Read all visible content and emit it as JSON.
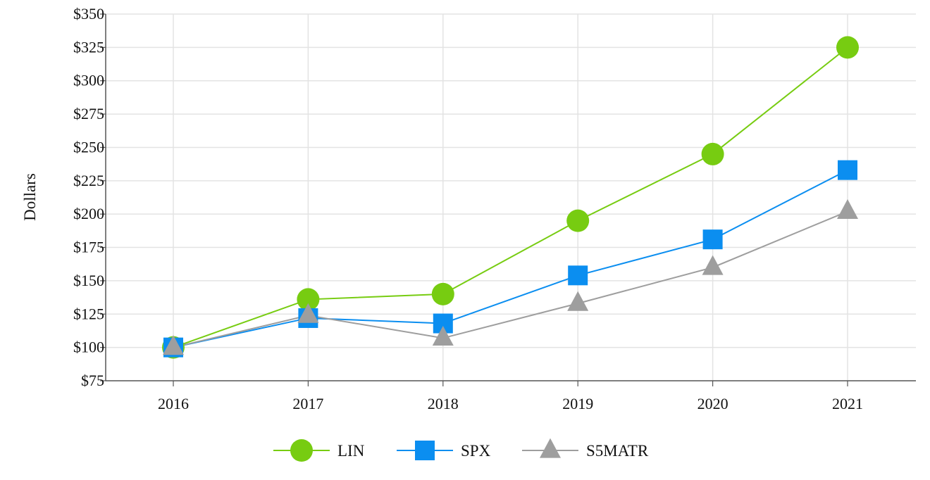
{
  "chart_data": {
    "type": "line",
    "title": "",
    "xlabel": "",
    "ylabel": "Dollars",
    "categories": [
      "2016",
      "2017",
      "2018",
      "2019",
      "2020",
      "2021"
    ],
    "ylim": [
      75,
      350
    ],
    "yticks": [
      75,
      100,
      125,
      150,
      175,
      200,
      225,
      250,
      275,
      300,
      325,
      350
    ],
    "ytick_labels": [
      "$75",
      "$100",
      "$125",
      "$150",
      "$175",
      "$200",
      "$225",
      "$250",
      "$275",
      "$300",
      "$325",
      "$350"
    ],
    "grid": true,
    "legend_position": "bottom-center",
    "series": [
      {
        "name": "LIN",
        "values": [
          100,
          136,
          140,
          195,
          245,
          325
        ],
        "color": "#77cc11",
        "marker": "circle"
      },
      {
        "name": "SPX",
        "values": [
          100,
          122,
          118,
          154,
          181,
          233
        ],
        "color": "#0b8ef0",
        "marker": "square"
      },
      {
        "name": "S5MATR",
        "values": [
          100,
          124,
          107,
          133,
          160,
          202
        ],
        "color": "#9e9e9e",
        "marker": "triangle"
      }
    ]
  }
}
